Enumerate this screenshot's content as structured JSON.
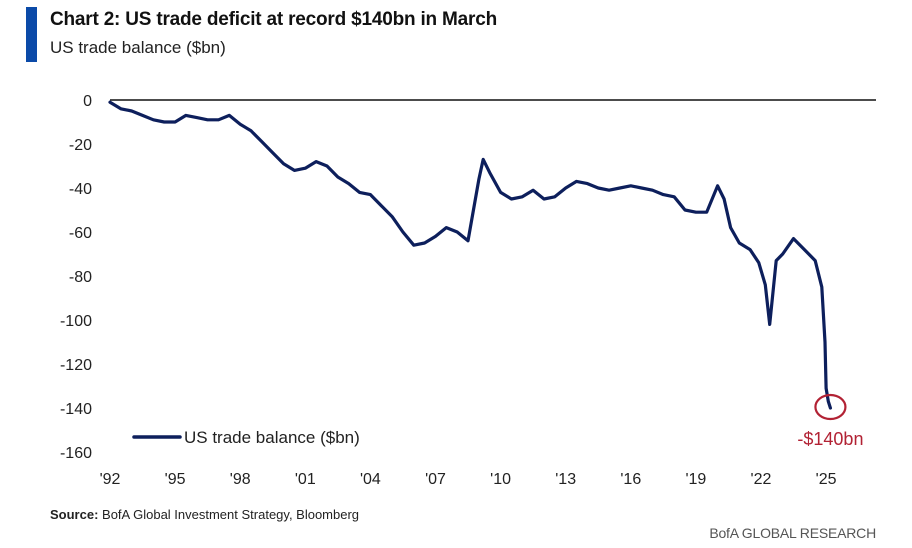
{
  "header": {
    "title": "Chart 2: US trade deficit at record $140bn in March",
    "subtitle": "US trade balance ($bn)"
  },
  "footer": {
    "source_label": "Source:",
    "source_text": "BofA Global Investment Strategy, Bloomberg",
    "brand": "BofA GLOBAL RESEARCH"
  },
  "colors": {
    "line": "#0d1f5c",
    "annotation": "#b22234",
    "accent": "#0b4aa8"
  },
  "chart_data": {
    "type": "line",
    "title": "Chart 2: US trade deficit at record $140bn in March",
    "ylabel": "US trade balance ($bn)",
    "xlabel": "",
    "xlim": [
      1992,
      2027.3
    ],
    "ylim": [
      -160,
      0
    ],
    "yticks": [
      0,
      -20,
      -40,
      -60,
      -80,
      -100,
      -120,
      -140,
      -160
    ],
    "ytick_labels": [
      "0",
      "-20",
      "-40",
      "-60",
      "-80",
      "-100",
      "-120",
      "-140",
      "-160"
    ],
    "xticks": [
      1992,
      1995,
      1998,
      2001,
      2004,
      2007,
      2010,
      2013,
      2016,
      2019,
      2022,
      2025
    ],
    "xtick_labels": [
      "'92",
      "'95",
      "'98",
      "'01",
      "'04",
      "'07",
      "'10",
      "'13",
      "'16",
      "'19",
      "'22",
      "'25"
    ],
    "grid": false,
    "legend": {
      "position": "bottom-left"
    },
    "series": [
      {
        "name": "US trade balance ($bn)",
        "x": [
          1992.0,
          1992.5,
          1993.0,
          1993.5,
          1994.0,
          1994.5,
          1995.0,
          1995.5,
          1996.0,
          1996.5,
          1997.0,
          1997.5,
          1998.0,
          1998.5,
          1999.0,
          1999.5,
          2000.0,
          2000.5,
          2001.0,
          2001.5,
          2002.0,
          2002.5,
          2003.0,
          2003.5,
          2004.0,
          2004.5,
          2005.0,
          2005.5,
          2006.0,
          2006.5,
          2007.0,
          2007.5,
          2008.0,
          2008.5,
          2009.0,
          2009.2,
          2009.5,
          2010.0,
          2010.5,
          2011.0,
          2011.5,
          2012.0,
          2012.5,
          2013.0,
          2013.5,
          2014.0,
          2014.5,
          2015.0,
          2015.5,
          2016.0,
          2016.5,
          2017.0,
          2017.5,
          2018.0,
          2018.5,
          2019.0,
          2019.5,
          2020.0,
          2020.3,
          2020.6,
          2021.0,
          2021.5,
          2021.9,
          2022.2,
          2022.4,
          2022.7,
          2023.0,
          2023.5,
          2024.0,
          2024.5,
          2024.8,
          2024.95,
          2025.0,
          2025.1,
          2025.2
        ],
        "values": [
          -1,
          -4,
          -5,
          -7,
          -9,
          -10,
          -10,
          -7,
          -8,
          -9,
          -9,
          -7,
          -11,
          -14,
          -19,
          -24,
          -29,
          -32,
          -31,
          -28,
          -30,
          -35,
          -38,
          -42,
          -43,
          -48,
          -53,
          -60,
          -66,
          -65,
          -62,
          -58,
          -60,
          -64,
          -36,
          -27,
          -33,
          -42,
          -45,
          -44,
          -41,
          -45,
          -44,
          -40,
          -37,
          -38,
          -40,
          -41,
          -40,
          -39,
          -40,
          -41,
          -43,
          -44,
          -50,
          -51,
          -51,
          -39,
          -45,
          -58,
          -65,
          -68,
          -74,
          -84,
          -102,
          -73,
          -70,
          -63,
          -68,
          -73,
          -85,
          -110,
          -131,
          -137,
          -140
        ]
      }
    ],
    "annotations": [
      {
        "text": "-$140bn",
        "x": 2025.2,
        "y": -140
      }
    ]
  }
}
